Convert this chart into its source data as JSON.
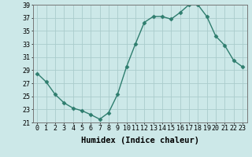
{
  "title": "",
  "xlabel": "Humidex (Indice chaleur)",
  "ylabel": "",
  "x": [
    0,
    1,
    2,
    3,
    4,
    5,
    6,
    7,
    8,
    9,
    10,
    11,
    12,
    13,
    14,
    15,
    16,
    17,
    18,
    19,
    20,
    21,
    22,
    23
  ],
  "y": [
    28.5,
    27.2,
    25.3,
    24.0,
    23.2,
    22.8,
    22.2,
    21.5,
    22.5,
    25.3,
    29.5,
    33.0,
    36.3,
    37.2,
    37.2,
    36.8,
    37.8,
    39.0,
    39.0,
    37.2,
    34.2,
    32.8,
    30.5,
    29.5
  ],
  "line_color": "#2e7d6e",
  "marker": "D",
  "marker_size": 2.5,
  "bg_color": "#cce8e8",
  "grid_color": "#aacccc",
  "ylim_min": 21,
  "ylim_max": 39,
  "yticks": [
    21,
    23,
    25,
    27,
    29,
    31,
    33,
    35,
    37,
    39
  ],
  "xticks": [
    0,
    1,
    2,
    3,
    4,
    5,
    6,
    7,
    8,
    9,
    10,
    11,
    12,
    13,
    14,
    15,
    16,
    17,
    18,
    19,
    20,
    21,
    22,
    23
  ],
  "tick_fontsize": 6,
  "label_fontsize": 7.5,
  "line_width": 1.0
}
